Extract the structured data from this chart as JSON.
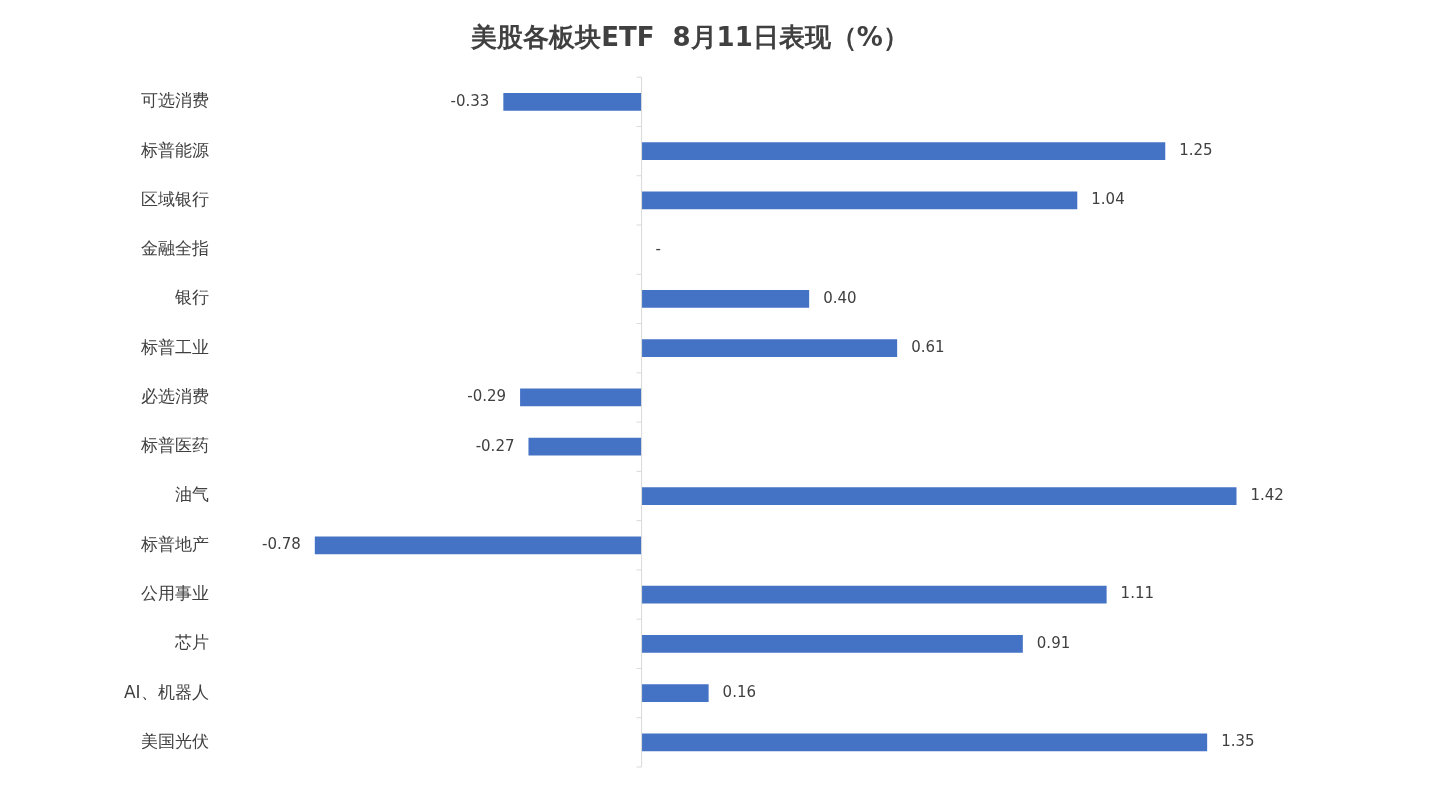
{
  "chart_data": {
    "type": "bar",
    "orientation": "horizontal",
    "title": "美股各板块ETF  8月11日表现（%）",
    "categories": [
      "可选消费",
      "标普能源",
      "区域银行",
      "金融全指",
      "银行",
      "标普工业",
      "必选消费",
      "标普医药",
      "油气",
      "标普地产",
      "公用事业",
      "芯片",
      "AI、机器人",
      "美国光伏"
    ],
    "values": [
      -0.33,
      1.25,
      1.04,
      0,
      0.4,
      0.61,
      -0.29,
      -0.27,
      1.42,
      -0.78,
      1.11,
      0.91,
      0.16,
      1.35
    ],
    "value_labels": [
      "-0.33",
      "1.25",
      "1.04",
      "-",
      "0.40",
      "0.61",
      "-0.29",
      "-0.27",
      "1.42",
      "-0.78",
      "1.11",
      "0.91",
      "0.16",
      "1.35"
    ],
    "color": "#4472c4",
    "tick_labels": "y",
    "legend": false,
    "grid": false
  }
}
